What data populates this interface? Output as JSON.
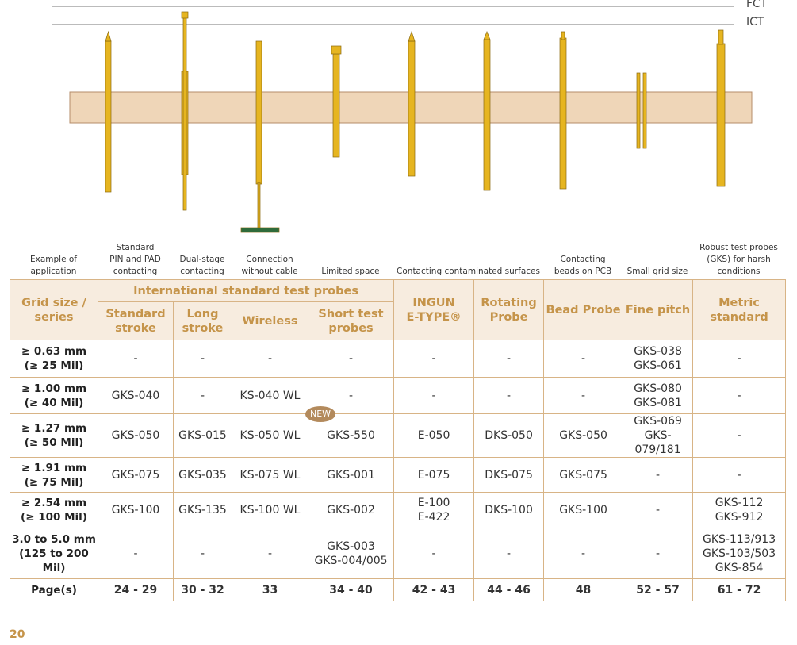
{
  "levels": {
    "fct": "FCT",
    "ict": "ICT"
  },
  "applications": [
    "Example of\napplication",
    "Standard\nPIN and PAD\ncontacting",
    "Dual-stage\ncontacting",
    "Connection\nwithout cable",
    "Limited space",
    "Contacting contaminated surfaces",
    "Contacting\nbeads on PCB",
    "Small grid size",
    "Robust test probes\n(GKS) for harsh\nconditions"
  ],
  "table": {
    "corner": "Grid size /\nseries",
    "group": "International standard test probes",
    "group_columns": [
      "Standard\nstroke",
      "Long\nstroke",
      "Wireless",
      "Short test\nprobes"
    ],
    "columns": [
      "INGUN\nE-TYPE®",
      "Rotating\nProbe",
      "Bead Probe",
      "Fine pitch",
      "Metric\nstandard"
    ],
    "rows": [
      [
        "≥ 0.63 mm\n(≥ 25 Mil)",
        "-",
        "-",
        "-",
        "-",
        "-",
        "-",
        "-",
        "GKS-038\nGKS-061",
        "-"
      ],
      [
        "≥ 1.00 mm\n(≥ 40 Mil)",
        "GKS-040",
        "-",
        "KS-040 WL",
        "-",
        "-",
        "-",
        "-",
        "GKS-080\nGKS-081",
        "-"
      ],
      [
        "≥ 1.27 mm\n(≥ 50 Mil)",
        "GKS-050",
        "GKS-015",
        "KS-050 WL",
        "GKS-550",
        "E-050",
        "DKS-050",
        "GKS-050",
        "GKS-069\nGKS-079/181",
        "-"
      ],
      [
        "≥ 1.91 mm\n(≥ 75 Mil)",
        "GKS-075",
        "GKS-035",
        "KS-075 WL",
        "GKS-001",
        "E-075",
        "DKS-075",
        "GKS-075",
        "-",
        "-"
      ],
      [
        "≥ 2.54 mm\n(≥ 100 Mil)",
        "GKS-100",
        "GKS-135",
        "KS-100 WL",
        "GKS-002",
        "E-100\nE-422",
        "DKS-100",
        "GKS-100",
        "-",
        "GKS-112\nGKS-912"
      ],
      [
        "3.0 to 5.0 mm\n(125 to 200\nMil)",
        "-",
        "-",
        "-",
        "GKS-003\nGKS-004/005",
        "-",
        "-",
        "-",
        "-",
        "GKS-113/913\nGKS-103/503\nGKS-854"
      ],
      [
        "Page(s)",
        "24 - 29",
        "30 - 32",
        "33",
        "34 - 40",
        "42 - 43",
        "44 - 46",
        "48",
        "52 - 57",
        "61 - 72"
      ]
    ]
  },
  "badge": "NEW",
  "page_number": "20"
}
